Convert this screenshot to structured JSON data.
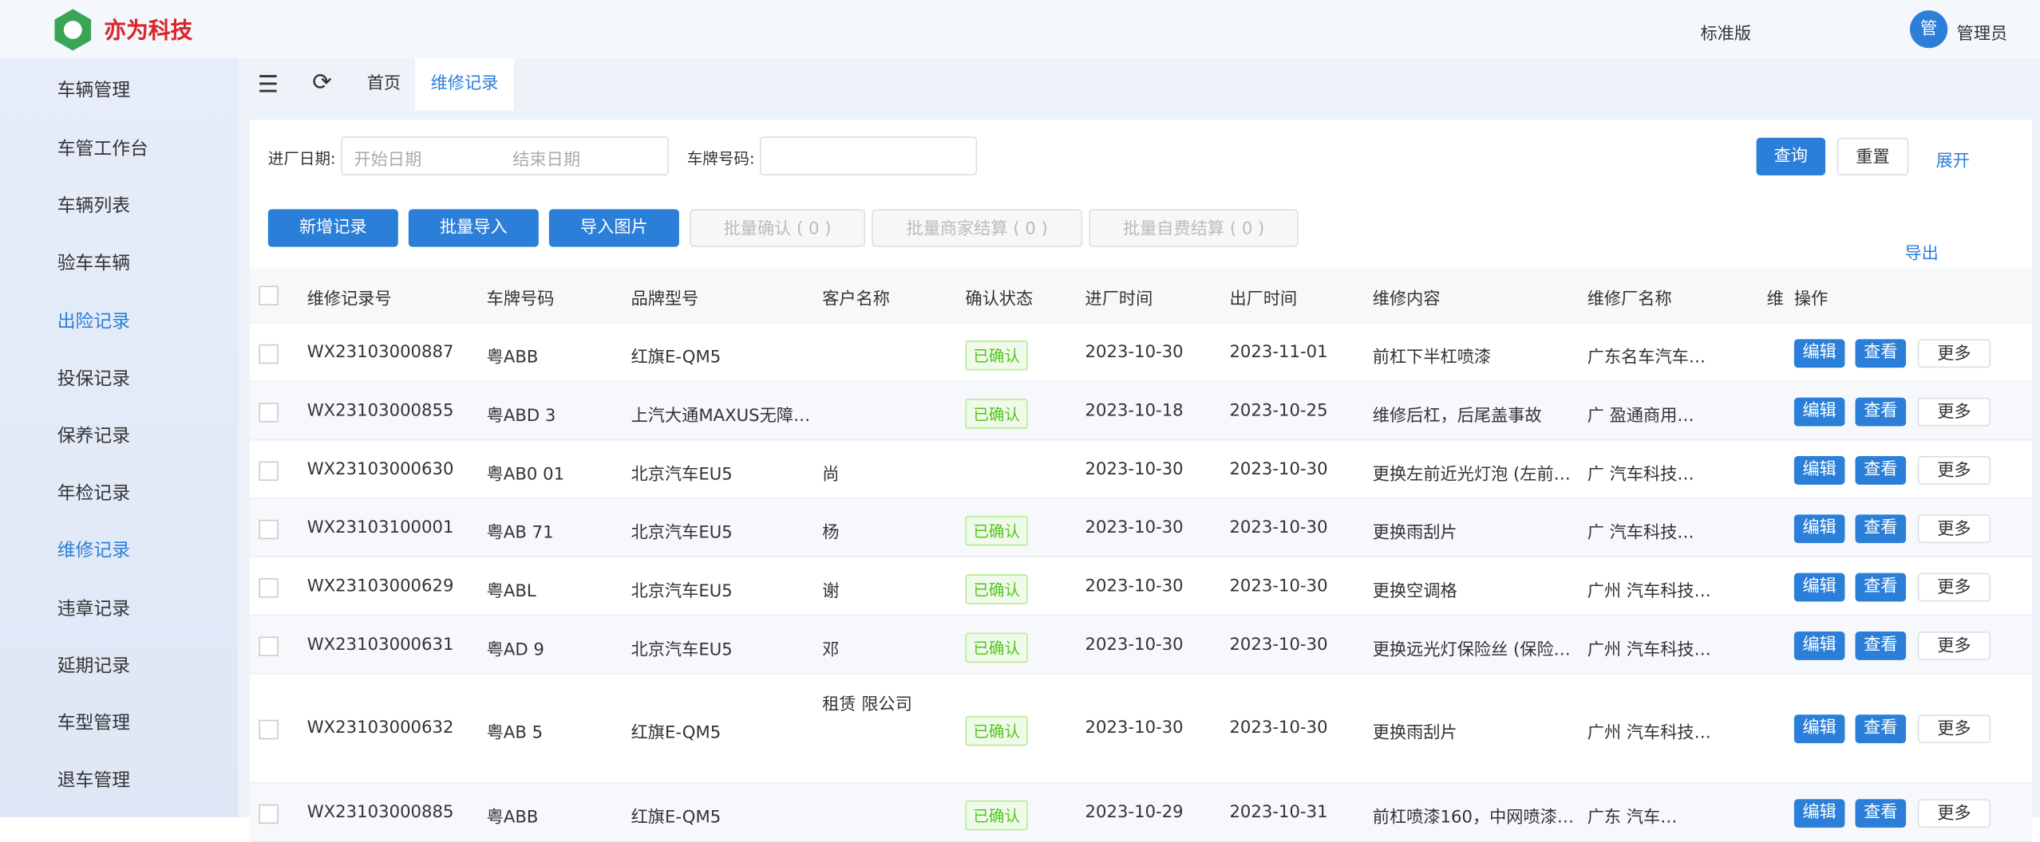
{
  "header": {
    "logo": "亦为科技",
    "version": "标准版",
    "avatar": "管",
    "user": "管理员"
  },
  "sidebar": {
    "group": "车辆管理",
    "items": [
      "车管工作台",
      "车辆列表",
      "验车车辆",
      "出险记录",
      "投保记录",
      "保养记录",
      "年检记录",
      "维修记录",
      "违章记录",
      "延期记录",
      "车型管理",
      "退车管理"
    ]
  },
  "tabs": [
    "首页",
    "维修记录"
  ],
  "filters": {
    "date_label": "进厂日期:",
    "start_placeholder": "开始日期",
    "end_placeholder": "结束日期",
    "plate_label": "车牌号码:",
    "query": "查询",
    "reset": "重置",
    "expand": "展开"
  },
  "toolbar": {
    "buttons": [
      "新增记录",
      "批量导入",
      "导入图片",
      "批量确认 ( 0 )",
      "批量商家结算 ( 0 )",
      "批量自费结算 ( 0 )"
    ],
    "export": "导出"
  },
  "table": {
    "columns": [
      "维修记录号",
      "车牌号码",
      "品牌型号",
      "客户名称",
      "确认状态",
      "进厂时间",
      "出厂时间",
      "维修内容",
      "维修厂名称",
      "维",
      "操作"
    ],
    "rows": [
      [
        "WX23103000887",
        "粤ABB",
        "红旗E-QM5",
        null,
        "已确认",
        "2023-10-30",
        "2023-11-01",
        "前杠下半杠喷漆",
        "广东名车汽车…"
      ],
      [
        "WX23103000855",
        "粤ABD 3",
        "上汽大通MAXUS无障…",
        null,
        "已确认",
        "2023-10-18",
        "2023-10-25",
        "维修后杠，后尾盖事故",
        "广 盈通商用…"
      ],
      [
        "WX23103000630",
        "粤AB0 01",
        "北京汽车EU5",
        "尚",
        null,
        "2023-10-30",
        "2023-10-30",
        "更换左前近光灯泡 (左前…",
        "广 汽车科技…"
      ],
      [
        "WX23103100001",
        "粤AB 71",
        "北京汽车EU5",
        "杨",
        "已确认",
        "2023-10-30",
        "2023-10-30",
        "更换雨刮片",
        "广 汽车科技…"
      ],
      [
        "WX23103000629",
        "粤ABL",
        "北京汽车EU5",
        "谢",
        "已确认",
        "2023-10-30",
        "2023-10-30",
        "更换空调格",
        "广州 汽车科技…"
      ],
      [
        "WX23103000631",
        "粤AD 9",
        "北京汽车EU5",
        "邓",
        "已确认",
        "2023-10-30",
        "2023-10-30",
        "更换远光灯保险丝 (保险…",
        "广州 汽车科技…"
      ],
      [
        "WX23103000632",
        "粤AB 5",
        "红旗E-QM5",
        "租赁 限公司",
        "已确认",
        "2023-10-30",
        "2023-10-30",
        "更换雨刮片",
        "广州 汽车科技…"
      ],
      [
        "WX23103000885",
        "粤ABB",
        "红旗E-QM5",
        null,
        "已确认",
        "2023-10-29",
        "2023-10-31",
        "前杠喷漆160，中网喷漆…",
        "广东 汽车…"
      ]
    ],
    "actions": [
      "编辑",
      "查看",
      "更多"
    ]
  }
}
